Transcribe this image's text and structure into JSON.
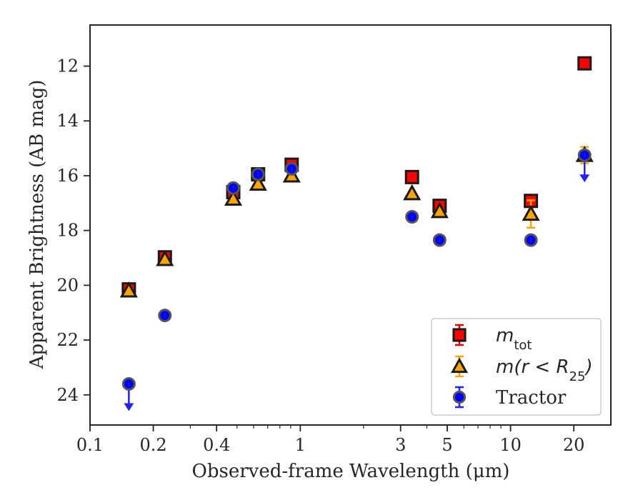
{
  "chart_data": {
    "type": "scatter",
    "title": "",
    "xlabel": "Observed-frame Wavelength (μm)",
    "ylabel": "Apparent Brightness (AB mag)",
    "x_scale": "log",
    "xlim": [
      0.1,
      30
    ],
    "ylim": [
      25.1,
      10.5
    ],
    "y_inverted": true,
    "grid": false,
    "legend_position": "lower-right",
    "x_ticks": [
      {
        "value": 0.1,
        "label": "0.1"
      },
      {
        "value": 0.2,
        "label": "0.2"
      },
      {
        "value": 0.4,
        "label": "0.4"
      },
      {
        "value": 1,
        "label": "1"
      },
      {
        "value": 3,
        "label": "3"
      },
      {
        "value": 5,
        "label": "5"
      },
      {
        "value": 10,
        "label": "10"
      },
      {
        "value": 20,
        "label": "20"
      }
    ],
    "y_ticks": [
      {
        "value": 12,
        "label": "12"
      },
      {
        "value": 14,
        "label": "14"
      },
      {
        "value": 16,
        "label": "16"
      },
      {
        "value": 18,
        "label": "18"
      },
      {
        "value": 20,
        "label": "20"
      },
      {
        "value": 22,
        "label": "22"
      },
      {
        "value": 24,
        "label": "24"
      }
    ],
    "series": [
      {
        "key": "mtot",
        "marker": "square",
        "color": "#ff0000",
        "ecolor": "#dd0000",
        "edge": "#1a1a1a",
        "points": [
          {
            "x": 0.153,
            "y": 20.15,
            "err": 0.05
          },
          {
            "x": 0.227,
            "y": 18.98,
            "err": 0.05
          },
          {
            "x": 0.48,
            "y": 16.6,
            "err": 0.05
          },
          {
            "x": 0.63,
            "y": 15.95,
            "err": 0.05
          },
          {
            "x": 0.91,
            "y": 15.6,
            "err": 0.05
          },
          {
            "x": 3.4,
            "y": 16.05,
            "err": 0.05
          },
          {
            "x": 4.6,
            "y": 17.1,
            "err": 0.05
          },
          {
            "x": 12.5,
            "y": 16.92,
            "err": 0.05
          },
          {
            "x": 22.5,
            "y": 11.9,
            "err": 0.05
          }
        ]
      },
      {
        "key": "mr25",
        "marker": "triangle",
        "color": "#ffa500",
        "ecolor": "#ffa500",
        "edge": "#1a1a1a",
        "points": [
          {
            "x": 0.153,
            "y": 20.2,
            "err": 0.05
          },
          {
            "x": 0.227,
            "y": 19.05,
            "err": 0.05
          },
          {
            "x": 0.48,
            "y": 16.85,
            "err": 0.05
          },
          {
            "x": 0.63,
            "y": 16.3,
            "err": 0.05
          },
          {
            "x": 0.91,
            "y": 16.0,
            "err": 0.05
          },
          {
            "x": 3.4,
            "y": 16.65,
            "err": 0.05
          },
          {
            "x": 4.6,
            "y": 17.3,
            "err": 0.05
          },
          {
            "x": 12.5,
            "y": 17.4,
            "err": 0.5
          },
          {
            "x": 22.5,
            "y": 15.25,
            "err": 0.3
          }
        ]
      },
      {
        "key": "tractor",
        "marker": "circle",
        "color": "#0000ff",
        "ecolor": "#2222ff",
        "edge": "#555555",
        "points": [
          {
            "x": 0.153,
            "y": 23.6,
            "err": 0.05,
            "upper_limit": true
          },
          {
            "x": 0.227,
            "y": 21.1,
            "err": 0.05
          },
          {
            "x": 0.48,
            "y": 16.45,
            "err": 0.05
          },
          {
            "x": 0.63,
            "y": 15.95,
            "err": 0.05
          },
          {
            "x": 0.91,
            "y": 15.75,
            "err": 0.05
          },
          {
            "x": 3.4,
            "y": 17.5,
            "err": 0.05
          },
          {
            "x": 4.6,
            "y": 18.35,
            "err": 0.05
          },
          {
            "x": 12.5,
            "y": 18.35,
            "err": 0.05
          },
          {
            "x": 22.5,
            "y": 15.25,
            "err": 0.05,
            "upper_limit": true
          }
        ]
      }
    ],
    "legend": [
      {
        "key": "mtot",
        "label_main": "m",
        "label_sub": "tot",
        "label_tail": ""
      },
      {
        "key": "mr25",
        "label_main": "m(r < R",
        "label_sub": "25",
        "label_tail": ")"
      },
      {
        "key": "tractor",
        "label_main": "Tractor",
        "label_sub": "",
        "label_tail": ""
      }
    ]
  }
}
